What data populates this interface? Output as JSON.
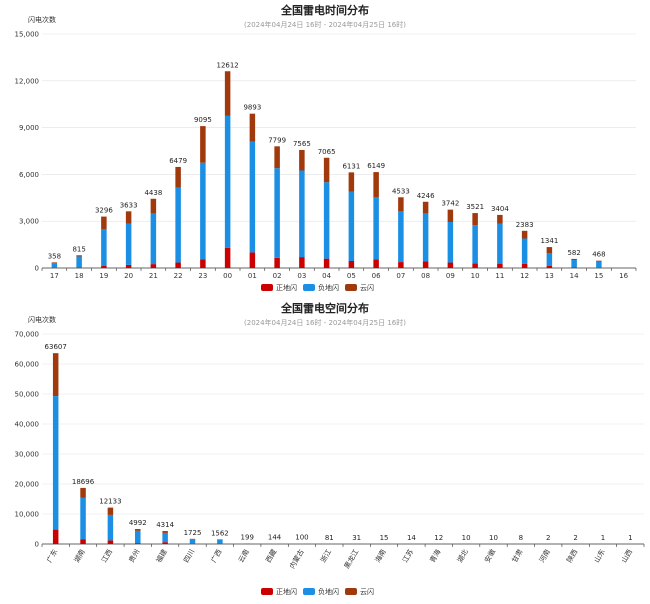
{
  "colors": {
    "positive": "#cc0000",
    "negative": "#1a8fe3",
    "cloud": "#a0390b"
  },
  "chart_data": [
    {
      "type": "bar",
      "stacked": true,
      "title": "全国雷电时间分布",
      "subtitle": "(2024年04月24日 16时 - 2024年04月25日 16时)",
      "ylabel": "闪电次数",
      "ylim": [
        0,
        15000
      ],
      "yticks": [
        "0",
        "3,000",
        "6,000",
        "9,000",
        "12,000",
        "15,000"
      ],
      "ytick_values": [
        0,
        3000,
        6000,
        9000,
        12000,
        15000
      ],
      "grid": true,
      "legend_position": "bottom-center",
      "categories": [
        "17",
        "18",
        "19",
        "20",
        "21",
        "22",
        "23",
        "00",
        "01",
        "02",
        "03",
        "04",
        "05",
        "06",
        "07",
        "08",
        "09",
        "10",
        "11",
        "12",
        "13",
        "14",
        "15",
        "16"
      ],
      "series": [
        {
          "name": "正地闪",
          "values": [
            20,
            40,
            150,
            200,
            250,
            350,
            550,
            1300,
            1000,
            650,
            700,
            600,
            450,
            550,
            380,
            420,
            350,
            300,
            280,
            260,
            130,
            30,
            20,
            0
          ]
        },
        {
          "name": "负地闪",
          "values": [
            280,
            700,
            2350,
            2650,
            3250,
            4800,
            6200,
            8450,
            7100,
            5750,
            5550,
            4900,
            4450,
            4000,
            3250,
            3080,
            2600,
            2450,
            2570,
            1630,
            830,
            480,
            400,
            0
          ]
        },
        {
          "name": "云闪",
          "values": [
            58,
            75,
            796,
            783,
            938,
            1329,
            2345,
            2862,
            1793,
            1399,
            1315,
            1565,
            1231,
            1599,
            903,
            746,
            792,
            771,
            554,
            493,
            381,
            72,
            48,
            0
          ]
        }
      ],
      "totals": [
        358,
        815,
        3296,
        3633,
        4438,
        6479,
        9095,
        12612,
        9893,
        7799,
        7565,
        7065,
        6131,
        6149,
        4533,
        4246,
        3742,
        3521,
        3404,
        2383,
        1341,
        582,
        468,
        ""
      ],
      "total_labels": [
        "358",
        "815",
        "3296",
        "3633",
        "4438",
        "6479",
        "9095",
        "12612",
        "9893",
        "7799",
        "7565",
        "7065",
        "6131",
        "6149",
        "4533",
        "4246",
        "3742",
        "3521",
        "3404",
        "2383",
        "1341",
        "582",
        "468",
        ""
      ]
    },
    {
      "type": "bar",
      "stacked": true,
      "title": "全国雷电空间分布",
      "subtitle": "(2024年04月24日 16时 - 2024年04月25日 16时)",
      "ylabel": "闪电次数",
      "ylim": [
        0,
        70000
      ],
      "yticks": [
        "0",
        "10,000",
        "20,000",
        "30,000",
        "40,000",
        "50,000",
        "60,000",
        "70,000"
      ],
      "ytick_values": [
        0,
        10000,
        20000,
        30000,
        40000,
        50000,
        60000,
        70000
      ],
      "grid": true,
      "legend_position": "bottom-center",
      "categories": [
        "广东",
        "湖南",
        "江西",
        "贵州",
        "福建",
        "四川",
        "广西",
        "云南",
        "西藏",
        "内蒙古",
        "浙江",
        "黑龙江",
        "海南",
        "江苏",
        "青海",
        "湖北",
        "安徽",
        "甘肃",
        "河南",
        "陕西",
        "山东",
        "山西"
      ],
      "series": [
        {
          "name": "正地闪",
          "values": [
            4800,
            1500,
            1200,
            300,
            600,
            100,
            100,
            20,
            15,
            10,
            8,
            3,
            2,
            2,
            1,
            1,
            1,
            1,
            0,
            0,
            0,
            0
          ]
        },
        {
          "name": "负地闪",
          "values": [
            44500,
            14000,
            8500,
            4100,
            3100,
            1450,
            1300,
            150,
            110,
            80,
            60,
            25,
            12,
            10,
            10,
            8,
            8,
            6,
            2,
            2,
            1,
            1
          ]
        },
        {
          "name": "云闪",
          "values": [
            14307,
            3196,
            2433,
            592,
            614,
            175,
            162,
            29,
            19,
            10,
            13,
            3,
            1,
            2,
            1,
            1,
            1,
            1,
            0,
            0,
            0,
            0
          ]
        }
      ],
      "totals": [
        63607,
        18696,
        12133,
        4992,
        4314,
        1725,
        1562,
        199,
        144,
        100,
        81,
        31,
        15,
        14,
        12,
        10,
        10,
        8,
        2,
        2,
        1,
        1
      ],
      "total_labels": [
        "63607",
        "18696",
        "12133",
        "4992",
        "4314",
        "1725",
        "1562",
        "199",
        "144",
        "100",
        "81",
        "31",
        "15",
        "14",
        "12",
        "10",
        "10",
        "8",
        "2",
        "2",
        "1",
        "1"
      ]
    }
  ]
}
